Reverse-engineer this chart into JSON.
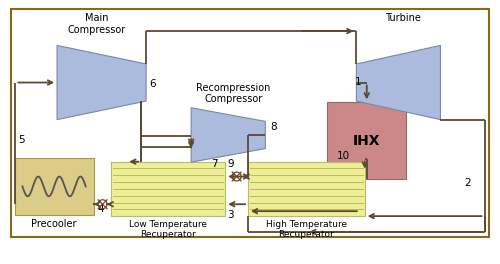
{
  "bg_color": "#ffffff",
  "line_color": "#5A4A30",
  "mc_face": "#AABBDD",
  "mc_edge": "#7788AA",
  "rc_face": "#AABBDD",
  "rc_edge": "#7788AA",
  "tb_face": "#AABBDD",
  "tb_edge": "#7788AA",
  "ihx_face": "#CC8888",
  "ihx_edge": "#996666",
  "pre_face": "#DDCC88",
  "pre_edge": "#AA9944",
  "rec_face": "#EEEE99",
  "rec_edge": "#BBBB66",
  "rec_line": "#BBBB55",
  "valve_color": "#996633",
  "outer_color": "#8B6914",
  "mc_label": "Main\nCompressor",
  "rc_label": "Recompression\nCompressor",
  "tb_label": "Turbine",
  "ihx_label": "IHX",
  "pre_label": "Precooler",
  "ltr_label": "Low Temperature\nRecuperator",
  "htr_label": "High Temperature\nRecuperator"
}
